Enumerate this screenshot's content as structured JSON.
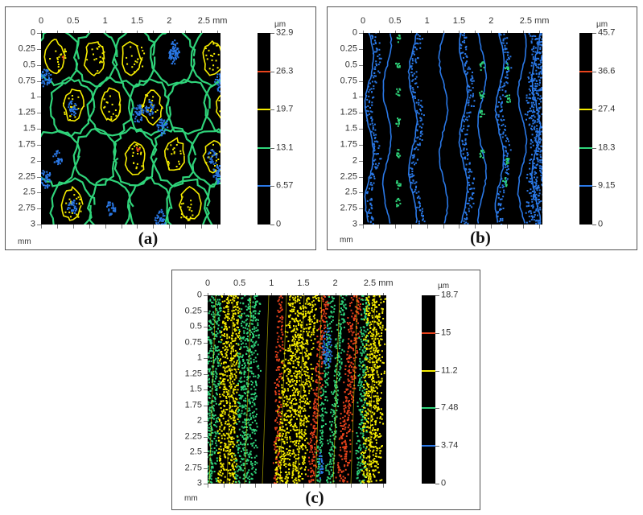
{
  "figure": {
    "panels": [
      {
        "id": "a",
        "caption": "(a)",
        "x_unit": "mm",
        "y_unit": "mm",
        "colorbar_unit": "µm",
        "x_ticks": [
          "0",
          "0.5",
          "1",
          "1.5",
          "2",
          "2.5 mm"
        ],
        "y_ticks": [
          "0",
          "0.25",
          "0.5",
          "0.75",
          "1",
          "1.25",
          "1.5",
          "1.75",
          "2",
          "2.25",
          "2.5",
          "2.75",
          "3"
        ],
        "colorbar_ticks": [
          "32.9",
          "26.3",
          "19.7",
          "13.1",
          "6.57",
          "0"
        ],
        "pattern": "cells"
      },
      {
        "id": "b",
        "caption": "(b)",
        "x_unit": "mm",
        "y_unit": "mm",
        "colorbar_unit": "µm",
        "x_ticks": [
          "0",
          "0.5",
          "1",
          "1.5",
          "2",
          "2.5 mm"
        ],
        "y_ticks": [
          "0",
          "0.25",
          "0.5",
          "0.75",
          "1",
          "1.25",
          "1.5",
          "1.75",
          "2",
          "2.25",
          "2.5",
          "2.75",
          "3"
        ],
        "colorbar_ticks": [
          "45.7",
          "36.6",
          "27.4",
          "18.3",
          "9.15",
          "0"
        ],
        "pattern": "waves"
      },
      {
        "id": "c",
        "caption": "(c)",
        "x_unit": "mm",
        "y_unit": "mm",
        "colorbar_unit": "µm",
        "x_ticks": [
          "0",
          "0.5",
          "1",
          "1.5",
          "2",
          "2.5 mm"
        ],
        "y_ticks": [
          "0",
          "0.25",
          "0.5",
          "0.75",
          "1",
          "1.25",
          "1.5",
          "1.75",
          "2",
          "2.25",
          "2.5",
          "2.75",
          "3"
        ],
        "colorbar_ticks": [
          "18.7",
          "15",
          "11.2",
          "7.48",
          "3.74",
          "0"
        ],
        "pattern": "stripes"
      }
    ],
    "colors": {
      "background": "#000000",
      "red": "#e8431c",
      "yellow": "#f5ec00",
      "green": "#2fd47a",
      "blue": "#2a78e6"
    }
  },
  "chart_data": [
    {
      "type": "heatmap",
      "title": "(a)",
      "xlabel": "mm",
      "ylabel": "mm",
      "xlim": [
        0,
        2.8
      ],
      "ylim": [
        0,
        3
      ],
      "x_tick_labels": [
        "0",
        "0.5",
        "1",
        "1.5",
        "2",
        "2.5"
      ],
      "y_tick_labels": [
        "0",
        "0.25",
        "0.5",
        "0.75",
        "1",
        "1.25",
        "1.5",
        "1.75",
        "2",
        "2.25",
        "2.5",
        "2.75",
        "3"
      ],
      "colorbar": {
        "unit": "µm",
        "range": [
          0,
          32.9
        ],
        "levels": [
          0,
          6.57,
          13.1,
          19.7,
          26.3,
          32.9
        ],
        "level_colors": {
          "6.57": "blue",
          "13.1": "green",
          "19.7": "yellow",
          "26.3": "red"
        }
      },
      "description": "Contour map of dimple/cell-like surface texture: green contours form cell boundaries, yellow closed contours inside cells, blue spots in low regions, sparse red points"
    },
    {
      "type": "heatmap",
      "title": "(b)",
      "xlabel": "mm",
      "ylabel": "mm",
      "xlim": [
        0,
        2.8
      ],
      "ylim": [
        0,
        3
      ],
      "x_tick_labels": [
        "0",
        "0.5",
        "1",
        "1.5",
        "2",
        "2.5"
      ],
      "y_tick_labels": [
        "0",
        "0.25",
        "0.5",
        "0.75",
        "1",
        "1.25",
        "1.5",
        "1.75",
        "2",
        "2.25",
        "2.5",
        "2.75",
        "3"
      ],
      "colorbar": {
        "unit": "µm",
        "range": [
          0,
          45.7
        ],
        "levels": [
          0,
          9.15,
          18.3,
          27.4,
          36.6,
          45.7
        ],
        "level_colors": {
          "9.15": "blue",
          "18.3": "green",
          "27.4": "yellow",
          "36.6": "red"
        }
      },
      "description": "Contour map dominated by vertical wavy blue bands (about 9 columns), with small scattered green islands"
    },
    {
      "type": "heatmap",
      "title": "(c)",
      "xlabel": "mm",
      "ylabel": "mm",
      "xlim": [
        0,
        2.8
      ],
      "ylim": [
        0,
        3
      ],
      "x_tick_labels": [
        "0",
        "0.5",
        "1",
        "1.5",
        "2",
        "2.5"
      ],
      "y_tick_labels": [
        "0",
        "0.25",
        "0.5",
        "0.75",
        "1",
        "1.25",
        "1.5",
        "1.75",
        "2",
        "2.25",
        "2.5",
        "2.75",
        "3"
      ],
      "colorbar": {
        "unit": "µm",
        "range": [
          0,
          18.7
        ],
        "levels": [
          0,
          3.74,
          7.48,
          11.2,
          15,
          18.7
        ],
        "level_colors": {
          "3.74": "blue",
          "7.48": "green",
          "11.2": "yellow",
          "15": "red"
        }
      },
      "description": "Contour map of near-vertical slightly slanted stripes in yellow, green and red, with a blue patch near x≈2 mm, y≈0.5–1 mm"
    }
  ]
}
